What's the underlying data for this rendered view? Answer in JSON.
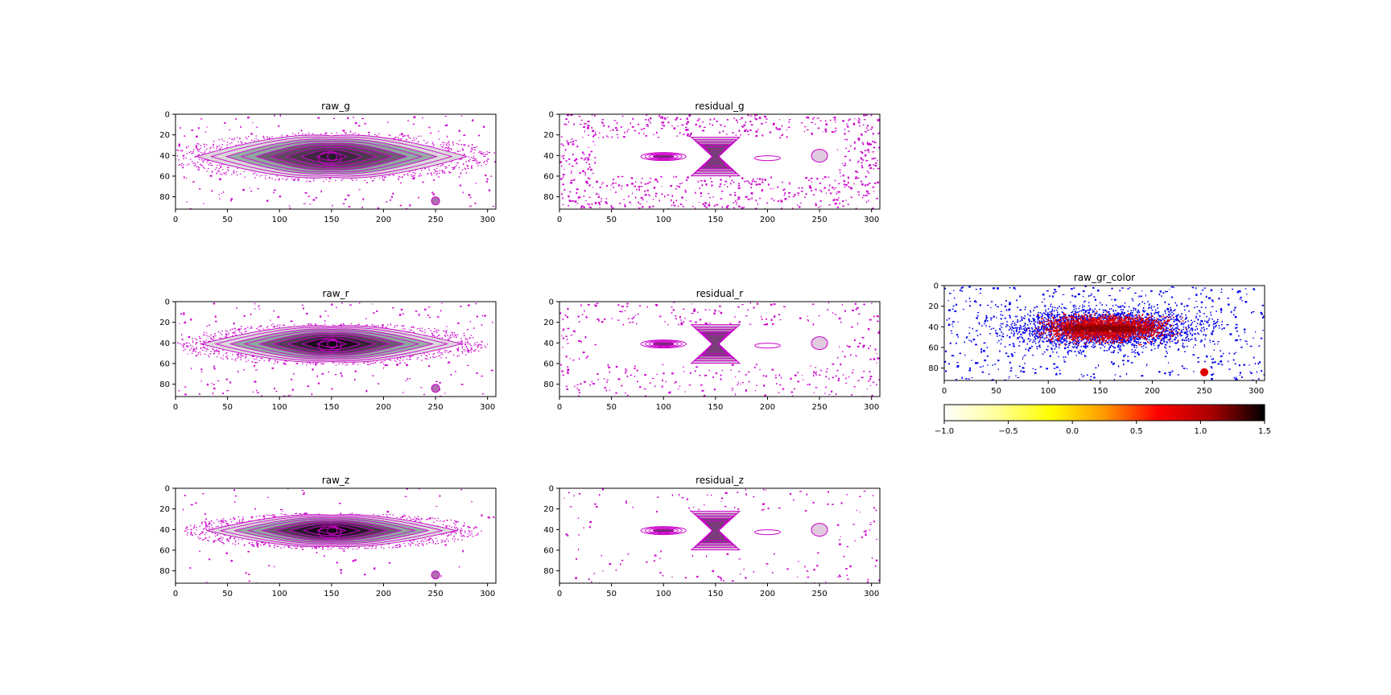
{
  "figure": {
    "background": "#ffffff",
    "frame_color": "#000000"
  },
  "chart_data": [
    {
      "id": "raw_g",
      "type": "heatmap",
      "kind": "galaxy",
      "band": "g",
      "strength": 0.45,
      "title": "raw_g",
      "xlim": [
        0,
        308
      ],
      "ylim": [
        92,
        0
      ],
      "xticks": [
        0,
        50,
        100,
        150,
        200,
        250,
        300
      ],
      "yticks": [
        0,
        20,
        40,
        60,
        80
      ],
      "center": [
        150,
        41
      ],
      "semi_axes": [
        130,
        20
      ],
      "noise_density": "low",
      "contour_color": "#cc00cc",
      "fill_color": "#2a1530"
    },
    {
      "id": "residual_g",
      "type": "heatmap",
      "kind": "residual",
      "band": "g",
      "title": "residual_g",
      "xlim": [
        0,
        308
      ],
      "ylim": [
        92,
        0
      ],
      "xticks": [
        0,
        50,
        100,
        150,
        200,
        250,
        300
      ],
      "yticks": [
        0,
        20,
        40,
        60,
        80
      ],
      "noise_density": "high",
      "contour_color": "#cc00cc"
    },
    {
      "id": "raw_r",
      "type": "heatmap",
      "kind": "galaxy",
      "band": "r",
      "strength": 0.75,
      "title": "raw_r",
      "xlim": [
        0,
        308
      ],
      "ylim": [
        92,
        0
      ],
      "xticks": [
        0,
        50,
        100,
        150,
        200,
        250,
        300
      ],
      "yticks": [
        0,
        20,
        40,
        60,
        80
      ],
      "center": [
        150,
        41
      ],
      "semi_axes": [
        125,
        17
      ],
      "noise_density": "low",
      "contour_color": "#cc00cc",
      "fill_color": "#1a0a1c"
    },
    {
      "id": "residual_r",
      "type": "heatmap",
      "kind": "residual",
      "band": "r",
      "title": "residual_r",
      "xlim": [
        0,
        308
      ],
      "ylim": [
        92,
        0
      ],
      "xticks": [
        0,
        50,
        100,
        150,
        200,
        250,
        300
      ],
      "yticks": [
        0,
        20,
        40,
        60,
        80
      ],
      "noise_density": "medium",
      "contour_color": "#cc00cc"
    },
    {
      "id": "raw_z",
      "type": "heatmap",
      "kind": "galaxy",
      "band": "z",
      "strength": 0.95,
      "title": "raw_z",
      "xlim": [
        0,
        308
      ],
      "ylim": [
        92,
        0
      ],
      "xticks": [
        0,
        50,
        100,
        150,
        200,
        250,
        300
      ],
      "yticks": [
        0,
        20,
        40,
        60,
        80
      ],
      "center": [
        150,
        41
      ],
      "semi_axes": [
        120,
        15
      ],
      "noise_density": "very low",
      "contour_color": "#cc00cc",
      "fill_color": "#100410"
    },
    {
      "id": "residual_z",
      "type": "heatmap",
      "kind": "residual",
      "band": "z",
      "title": "residual_z",
      "xlim": [
        0,
        308
      ],
      "ylim": [
        92,
        0
      ],
      "xticks": [
        0,
        50,
        100,
        150,
        200,
        250,
        300
      ],
      "yticks": [
        0,
        20,
        40,
        60,
        80
      ],
      "noise_density": "low",
      "contour_color": "#cc00cc"
    },
    {
      "id": "raw_gr_color",
      "type": "heatmap",
      "kind": "color",
      "title": "raw_gr_color",
      "xlim": [
        0,
        308
      ],
      "ylim": [
        92,
        0
      ],
      "xticks": [
        0,
        50,
        100,
        150,
        200,
        250,
        300
      ],
      "yticks": [
        0,
        20,
        40,
        60,
        80
      ],
      "colormap": "gist_heat_r",
      "outer_color": "#0000ee",
      "inner_color": "#dd0000",
      "core_color": "#880000",
      "colorbar": {
        "range": [
          -1.0,
          1.5
        ],
        "ticks": [
          "−1.0",
          "−0.5",
          "0.0",
          "0.5",
          "1.0",
          "1.5"
        ],
        "tick_values": [
          -1.0,
          -0.5,
          0.0,
          0.5,
          1.0,
          1.5
        ],
        "stops": [
          "#ffffff",
          "#ffff99",
          "#ffff00",
          "#ff9900",
          "#ff0000",
          "#aa0000",
          "#000000"
        ]
      }
    }
  ]
}
